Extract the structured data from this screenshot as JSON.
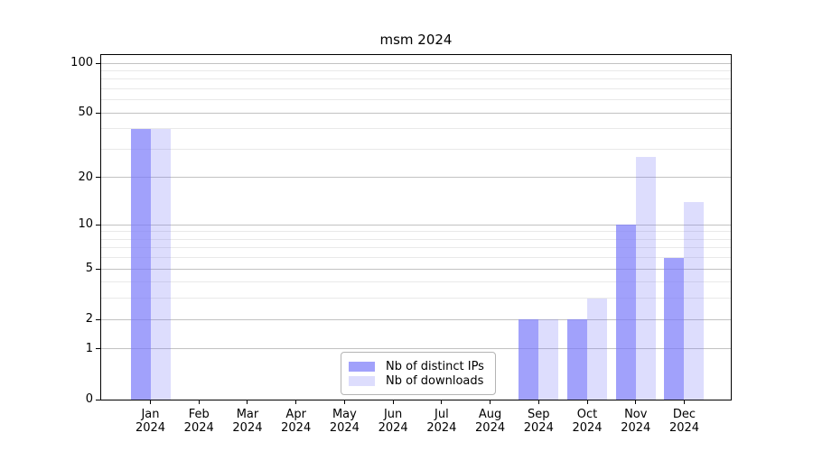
{
  "chart_data": {
    "type": "bar",
    "title": "msm 2024",
    "yscale": "log1p",
    "ylim": [
      0,
      112
    ],
    "grid": true,
    "legend_position": "lower center",
    "yticks": [
      100,
      50,
      20,
      10,
      5,
      2,
      1,
      0
    ],
    "major_grid_values": [
      1,
      2,
      5,
      10,
      20,
      50,
      100
    ],
    "minor_grid_values": [
      3,
      4,
      6,
      7,
      8,
      9,
      30,
      40,
      60,
      70,
      80,
      90
    ],
    "categories": [
      {
        "month": "Jan",
        "year": "2024"
      },
      {
        "month": "Feb",
        "year": "2024"
      },
      {
        "month": "Mar",
        "year": "2024"
      },
      {
        "month": "Apr",
        "year": "2024"
      },
      {
        "month": "May",
        "year": "2024"
      },
      {
        "month": "Jun",
        "year": "2024"
      },
      {
        "month": "Jul",
        "year": "2024"
      },
      {
        "month": "Aug",
        "year": "2024"
      },
      {
        "month": "Sep",
        "year": "2024"
      },
      {
        "month": "Oct",
        "year": "2024"
      },
      {
        "month": "Nov",
        "year": "2024"
      },
      {
        "month": "Dec",
        "year": "2024"
      }
    ],
    "series": [
      {
        "name": "Nb of distinct IPs",
        "fill": "rgba(121,121,249,0.7)",
        "values": [
          40,
          0,
          0,
          0,
          0,
          0,
          0,
          0,
          2,
          2,
          10,
          6
        ]
      },
      {
        "name": "Nb of downloads",
        "fill": "rgba(121,121,249,0.25)",
        "values": [
          40,
          0,
          0,
          0,
          0,
          0,
          0,
          0,
          2,
          3,
          27,
          14
        ]
      }
    ],
    "colors": {
      "bar_base": "#7979f9",
      "major_grid": "#c2c2c2",
      "minor_grid": "#e9e9e9",
      "spine": "#000000",
      "text": "#000000"
    }
  }
}
